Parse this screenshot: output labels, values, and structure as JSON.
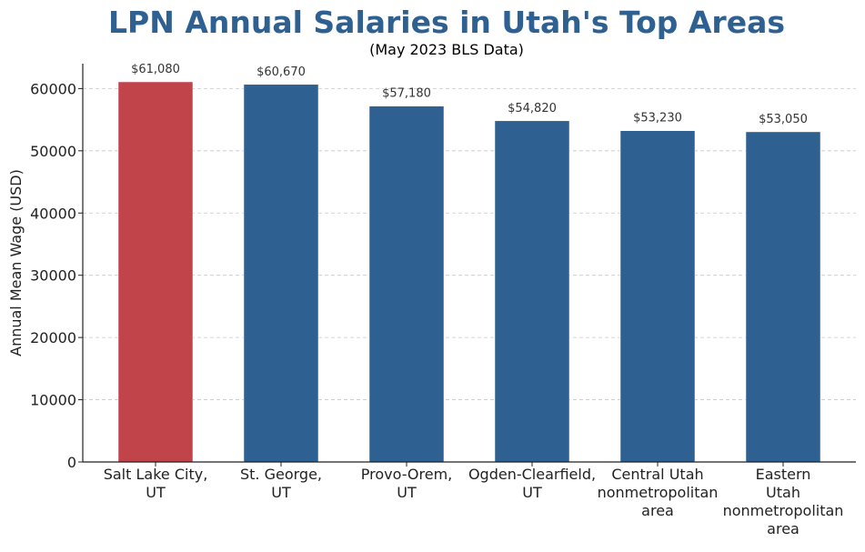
{
  "chart_data": {
    "type": "bar",
    "title": "LPN Annual Salaries in Utah's Top Areas",
    "subtitle": "(May 2023 BLS Data)",
    "xlabel": "",
    "ylabel": "Annual Mean Wage (USD)",
    "ylim": [
      0,
      64000
    ],
    "yticks": [
      0,
      10000,
      20000,
      30000,
      40000,
      50000,
      60000
    ],
    "grid": true,
    "categories": [
      [
        "Salt Lake City,",
        "UT"
      ],
      [
        "St. George,",
        "UT"
      ],
      [
        "Provo-Orem,",
        "UT"
      ],
      [
        "Ogden-Clearfield,",
        "UT"
      ],
      [
        "Central Utah",
        "nonmetropolitan",
        "area"
      ],
      [
        "Eastern",
        "Utah",
        "nonmetropolitan",
        "area"
      ]
    ],
    "values": [
      61080,
      60670,
      57180,
      54820,
      53230,
      53050
    ],
    "value_labels": [
      "$61,080",
      "$60,670",
      "$57,180",
      "$54,820",
      "$53,230",
      "$53,050"
    ],
    "colors": {
      "highlight": "#c0444a",
      "default": "#2e6191",
      "title": "#2e6191"
    },
    "highlight_index": 0
  }
}
